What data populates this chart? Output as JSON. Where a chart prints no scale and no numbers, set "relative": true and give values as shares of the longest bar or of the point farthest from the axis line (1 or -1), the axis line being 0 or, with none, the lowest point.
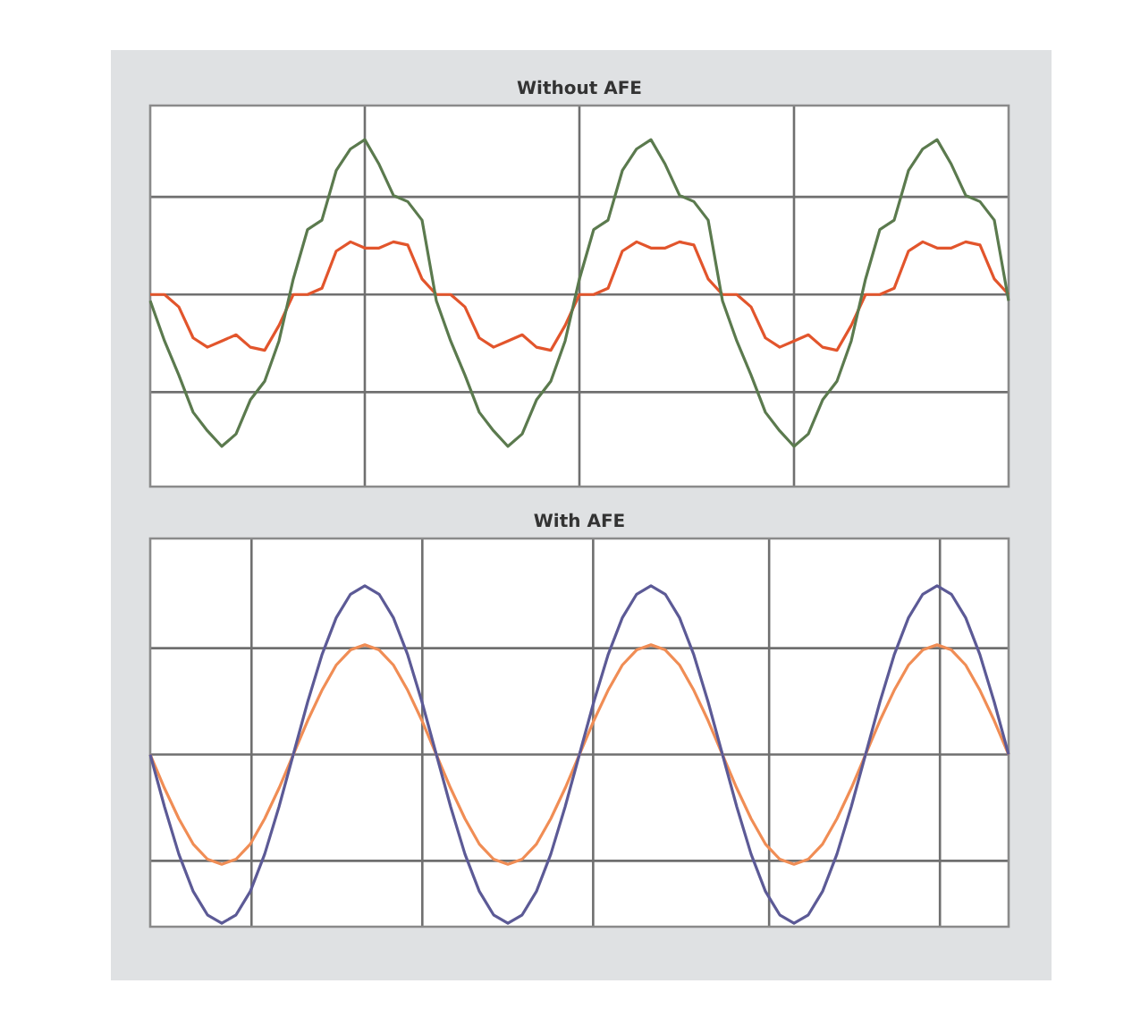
{
  "chart_data": [
    {
      "type": "line",
      "title": "Without AFE",
      "relative": true,
      "grid": true,
      "marker": "none",
      "categories": [
        null,
        null,
        null,
        null,
        null,
        null,
        null,
        null,
        null,
        null,
        null,
        null,
        null,
        null,
        null,
        null,
        null,
        null,
        null,
        null,
        null,
        null,
        null,
        null,
        null,
        null,
        null,
        null,
        null,
        null,
        null,
        null,
        null,
        null,
        null,
        null,
        null,
        null,
        null,
        null,
        null,
        null,
        null,
        null,
        null,
        null,
        null,
        null,
        null,
        null,
        null,
        null,
        null,
        null,
        null,
        null,
        null,
        null,
        null,
        null,
        null
      ],
      "series": [
        {
          "color": "#5b7a4e",
          "values": [
            -0.04,
            -0.3,
            -0.52,
            -0.76,
            -0.88,
            -0.98,
            -0.9,
            -0.68,
            -0.56,
            -0.3,
            0.1,
            0.42,
            0.48,
            0.8,
            0.94,
            1.0,
            0.84,
            0.64,
            0.6,
            0.48,
            -0.04,
            -0.3,
            -0.52,
            -0.76,
            -0.88,
            -0.98,
            -0.9,
            -0.68,
            -0.56,
            -0.3,
            0.1,
            0.42,
            0.48,
            0.8,
            0.94,
            1.0,
            0.84,
            0.64,
            0.6,
            0.48,
            -0.04,
            -0.3,
            -0.52,
            -0.76,
            -0.88,
            -0.98,
            -0.9,
            -0.68,
            -0.56,
            -0.3,
            0.1,
            0.42,
            0.48,
            0.8,
            0.94,
            1.0,
            0.84,
            0.64,
            0.6,
            0.48,
            -0.04
          ]
        },
        {
          "color": "#e2552c",
          "values": [
            0,
            0,
            -0.08,
            -0.28,
            -0.34,
            -0.3,
            -0.26,
            -0.34,
            -0.36,
            -0.2,
            0,
            0,
            0.04,
            0.28,
            0.34,
            0.3,
            0.3,
            0.34,
            0.32,
            0.1,
            0,
            0,
            -0.08,
            -0.28,
            -0.34,
            -0.3,
            -0.26,
            -0.34,
            -0.36,
            -0.2,
            0,
            0,
            0.04,
            0.28,
            0.34,
            0.3,
            0.3,
            0.34,
            0.32,
            0.1,
            0,
            0,
            -0.08,
            -0.28,
            -0.34,
            -0.3,
            -0.26,
            -0.34,
            -0.36,
            -0.2,
            0,
            0,
            0.04,
            0.28,
            0.34,
            0.3,
            0.3,
            0.34,
            0.32,
            0.1,
            0
          ]
        }
      ]
    },
    {
      "type": "line",
      "title": "With AFE",
      "relative": true,
      "grid": true,
      "marker": "none",
      "categories": [
        null,
        null,
        null,
        null,
        null,
        null,
        null,
        null,
        null,
        null,
        null,
        null,
        null,
        null,
        null,
        null,
        null,
        null,
        null,
        null,
        null,
        null,
        null,
        null,
        null,
        null,
        null,
        null,
        null,
        null,
        null,
        null,
        null,
        null,
        null,
        null,
        null,
        null,
        null,
        null,
        null,
        null,
        null,
        null,
        null,
        null,
        null,
        null,
        null,
        null,
        null,
        null,
        null,
        null,
        null,
        null,
        null,
        null,
        null,
        null,
        null
      ],
      "series": [
        {
          "color": "#5c5a96",
          "values": [
            0,
            -0.31,
            -0.59,
            -0.81,
            -0.95,
            -1,
            -0.95,
            -0.81,
            -0.59,
            -0.31,
            0,
            0.31,
            0.59,
            0.81,
            0.95,
            1,
            0.95,
            0.81,
            0.59,
            0.31,
            0,
            -0.31,
            -0.59,
            -0.81,
            -0.95,
            -1,
            -0.95,
            -0.81,
            -0.59,
            -0.31,
            0,
            0.31,
            0.59,
            0.81,
            0.95,
            1,
            0.95,
            0.81,
            0.59,
            0.31,
            0,
            -0.31,
            -0.59,
            -0.81,
            -0.95,
            -1,
            -0.95,
            -0.81,
            -0.59,
            -0.31,
            0,
            0.31,
            0.59,
            0.81,
            0.95,
            1,
            0.95,
            0.81,
            0.59,
            0.31,
            0
          ]
        },
        {
          "color": "#f08d55",
          "values": [
            0,
            -0.2,
            -0.38,
            -0.53,
            -0.62,
            -0.65,
            -0.62,
            -0.53,
            -0.38,
            -0.2,
            0,
            0.2,
            0.38,
            0.53,
            0.62,
            0.65,
            0.62,
            0.53,
            0.38,
            0.2,
            0,
            -0.2,
            -0.38,
            -0.53,
            -0.62,
            -0.65,
            -0.62,
            -0.53,
            -0.38,
            -0.2,
            0,
            0.2,
            0.38,
            0.53,
            0.62,
            0.65,
            0.62,
            0.53,
            0.38,
            0.2,
            0,
            -0.2,
            -0.38,
            -0.53,
            -0.62,
            -0.65,
            -0.62,
            -0.53,
            -0.38,
            -0.2,
            0,
            0.2,
            0.38,
            0.53,
            0.62,
            0.65,
            0.62,
            0.53,
            0.38,
            0.2,
            0
          ]
        }
      ]
    }
  ]
}
